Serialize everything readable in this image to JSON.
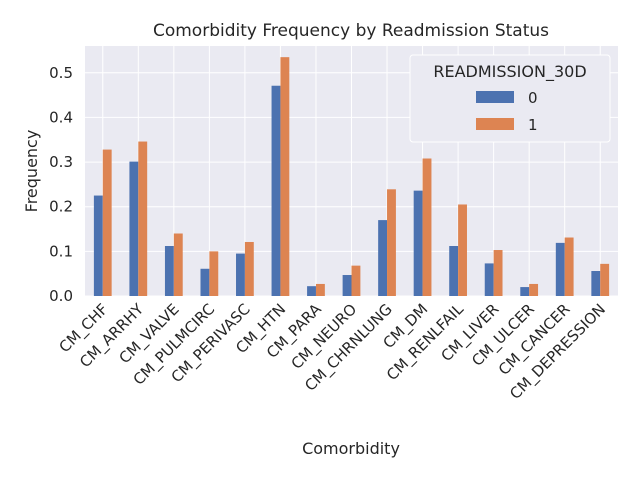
{
  "chart_data": {
    "type": "bar",
    "title": "Comorbidity Frequency by Readmission Status",
    "xlabel": "Comorbidity",
    "ylabel": "Frequency",
    "ylim": [
      0,
      0.56
    ],
    "yticks": [
      0.0,
      0.1,
      0.2,
      0.3,
      0.4,
      0.5
    ],
    "ytick_labels": [
      "0.0",
      "0.1",
      "0.2",
      "0.3",
      "0.4",
      "0.5"
    ],
    "grid": true,
    "legend": {
      "title": "READMISSION_30D",
      "placement": "top-right"
    },
    "categories": [
      "CM_CHF",
      "CM_ARRHY",
      "CM_VALVE",
      "CM_PULMCIRC",
      "CM_PERIVASC",
      "CM_HTN",
      "CM_PARA",
      "CM_NEURO",
      "CM_CHRNLUNG",
      "CM_DM",
      "CM_RENLFAIL",
      "CM_LIVER",
      "CM_ULCER",
      "CM_CANCER",
      "CM_DEPRESSION"
    ],
    "series": [
      {
        "name": "0",
        "color": "#4c72b0",
        "values": [
          0.225,
          0.301,
          0.112,
          0.061,
          0.095,
          0.471,
          0.022,
          0.047,
          0.17,
          0.236,
          0.112,
          0.073,
          0.02,
          0.119,
          0.056
        ]
      },
      {
        "name": "1",
        "color": "#dd8452",
        "values": [
          0.328,
          0.346,
          0.14,
          0.1,
          0.121,
          0.535,
          0.027,
          0.068,
          0.239,
          0.308,
          0.205,
          0.103,
          0.027,
          0.131,
          0.072
        ]
      }
    ]
  }
}
